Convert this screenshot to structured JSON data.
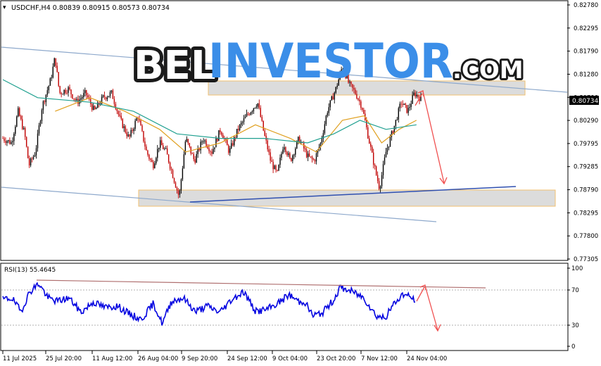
{
  "header": {
    "symbol_line": "USDCHF,H4  0.80839 0.80915 0.80573 0.80734",
    "rsi_label": "RSI(13) 55.4645"
  },
  "watermark": {
    "part1": "BEL",
    "part2": "INVESTOR",
    "part3": ".COM"
  },
  "colors": {
    "bull_candle": "#000000",
    "bear_candle": "#c00000",
    "ma_fast": "#e0a020",
    "ma_slow": "#20a090",
    "rsi_line": "#0000e0",
    "trendline": "#8ea9cc",
    "support_line": "#3050b0",
    "resistance_rsi": "#b07070",
    "zone_fill": "#dcdcdc",
    "zone_border": "#f0c070",
    "arrow": "#f05050",
    "current_price_bg": "#000000",
    "watermark_dark": "#1a1a1a",
    "watermark_blue": "#3b8ee8"
  },
  "chart_data": [
    {
      "type": "candlestick",
      "title": "USDCHF,H4",
      "ohlc_last": {
        "open": 0.80839,
        "high": 0.80915,
        "low": 0.80573,
        "close": 0.80734
      },
      "current_price_label": "0.80734",
      "ylim": [
        0.7715,
        0.8288
      ],
      "y_ticks": [
        "0.82780",
        "0.82295",
        "0.81790",
        "0.81280",
        "0.80790",
        "0.80290",
        "0.79795",
        "0.79285",
        "0.78790",
        "0.78295",
        "0.77800",
        "0.77305"
      ],
      "x_ticks": [
        "11 Jul 2025",
        "25 Jul 20:00",
        "11 Aug 12:00",
        "26 Aug 04:00",
        "9 Sep 20:00",
        "24 Sep 12:00",
        "9 Oct 04:00",
        "23 Oct 20:00",
        "7 Nov 12:00",
        "24 Nov 04:00"
      ],
      "close_path": [
        [
          0,
          0.7985
        ],
        [
          0.02,
          0.7975
        ],
        [
          0.035,
          0.8045
        ],
        [
          0.05,
          0.7995
        ],
        [
          0.06,
          0.7925
        ],
        [
          0.075,
          0.7955
        ],
        [
          0.09,
          0.8055
        ],
        [
          0.11,
          0.8115
        ],
        [
          0.12,
          0.8165
        ],
        [
          0.13,
          0.8085
        ],
        [
          0.15,
          0.8095
        ],
        [
          0.17,
          0.8065
        ],
        [
          0.19,
          0.8085
        ],
        [
          0.21,
          0.8045
        ],
        [
          0.23,
          0.8075
        ],
        [
          0.25,
          0.8085
        ],
        [
          0.27,
          0.8025
        ],
        [
          0.29,
          0.7985
        ],
        [
          0.31,
          0.8035
        ],
        [
          0.33,
          0.7955
        ],
        [
          0.345,
          0.7925
        ],
        [
          0.36,
          0.7975
        ],
        [
          0.375,
          0.7955
        ],
        [
          0.39,
          0.7905
        ],
        [
          0.405,
          0.7855
        ],
        [
          0.42,
          0.7985
        ],
        [
          0.44,
          0.7935
        ],
        [
          0.46,
          0.7985
        ],
        [
          0.48,
          0.7955
        ],
        [
          0.5,
          0.8005
        ],
        [
          0.52,
          0.7955
        ],
        [
          0.54,
          0.8005
        ],
        [
          0.56,
          0.8035
        ],
        [
          0.585,
          0.8065
        ],
        [
          0.6,
          0.7995
        ],
        [
          0.615,
          0.7935
        ],
        [
          0.63,
          0.7905
        ],
        [
          0.645,
          0.7975
        ],
        [
          0.66,
          0.7935
        ],
        [
          0.68,
          0.7985
        ],
        [
          0.7,
          0.7945
        ],
        [
          0.715,
          0.7935
        ],
        [
          0.73,
          0.7975
        ],
        [
          0.745,
          0.8045
        ],
        [
          0.765,
          0.8095
        ],
        [
          0.78,
          0.8145
        ],
        [
          0.795,
          0.8105
        ],
        [
          0.81,
          0.8085
        ],
        [
          0.825,
          0.8055
        ],
        [
          0.84,
          0.7985
        ],
        [
          0.855,
          0.7915
        ],
        [
          0.865,
          0.7875
        ],
        [
          0.88,
          0.7955
        ],
        [
          0.9,
          0.8015
        ],
        [
          0.915,
          0.8065
        ],
        [
          0.93,
          0.8045
        ],
        [
          0.945,
          0.8085
        ],
        [
          0.96,
          0.8073
        ]
      ],
      "ma_fast_path": [
        [
          0.12,
          0.8045
        ],
        [
          0.2,
          0.8075
        ],
        [
          0.28,
          0.8045
        ],
        [
          0.36,
          0.8005
        ],
        [
          0.42,
          0.7955
        ],
        [
          0.5,
          0.7975
        ],
        [
          0.58,
          0.8015
        ],
        [
          0.66,
          0.7985
        ],
        [
          0.72,
          0.7955
        ],
        [
          0.78,
          0.8025
        ],
        [
          0.83,
          0.8035
        ],
        [
          0.87,
          0.7975
        ],
        [
          0.91,
          0.8005
        ],
        [
          0.95,
          0.8025
        ]
      ],
      "ma_slow_path": [
        [
          0,
          0.8115
        ],
        [
          0.08,
          0.8075
        ],
        [
          0.2,
          0.8065
        ],
        [
          0.3,
          0.8045
        ],
        [
          0.4,
          0.7995
        ],
        [
          0.5,
          0.7985
        ],
        [
          0.6,
          0.7985
        ],
        [
          0.7,
          0.7975
        ],
        [
          0.76,
          0.7995
        ],
        [
          0.82,
          0.8025
        ],
        [
          0.88,
          0.8005
        ],
        [
          0.95,
          0.8015
        ]
      ]
    },
    {
      "type": "line",
      "title": "RSI(13)",
      "value": 55.4645,
      "ylim": [
        0,
        100
      ],
      "y_ticks": [
        "100",
        "70",
        "30",
        "0"
      ],
      "levels": [
        70,
        30
      ],
      "series_path": [
        [
          0,
          60
        ],
        [
          0.03,
          62
        ],
        [
          0.06,
          45
        ],
        [
          0.09,
          70
        ],
        [
          0.12,
          80
        ],
        [
          0.15,
          62
        ],
        [
          0.18,
          58
        ],
        [
          0.22,
          62
        ],
        [
          0.26,
          44
        ],
        [
          0.3,
          57
        ],
        [
          0.34,
          50
        ],
        [
          0.38,
          52
        ],
        [
          0.42,
          42
        ],
        [
          0.46,
          35
        ],
        [
          0.5,
          55
        ],
        [
          0.53,
          30
        ],
        [
          0.56,
          58
        ],
        [
          0.6,
          62
        ],
        [
          0.64,
          45
        ],
        [
          0.68,
          52
        ],
        [
          0.72,
          44
        ],
        [
          0.76,
          60
        ],
        [
          0.8,
          70
        ],
        [
          0.84,
          45
        ],
        [
          0.88,
          48
        ],
        [
          0.92,
          57
        ],
        [
          0.95,
          66
        ],
        [
          0.99,
          56
        ],
        [
          1.0,
          59
        ],
        [
          1.03,
          40
        ],
        [
          1.06,
          43
        ],
        [
          1.1,
          60
        ],
        [
          1.12,
          75
        ],
        [
          1.16,
          70
        ],
        [
          1.2,
          62
        ],
        [
          1.24,
          40
        ],
        [
          1.27,
          37
        ],
        [
          1.3,
          55
        ],
        [
          1.33,
          67
        ],
        [
          1.36,
          62
        ],
        [
          1.37,
          58
        ]
      ]
    }
  ]
}
